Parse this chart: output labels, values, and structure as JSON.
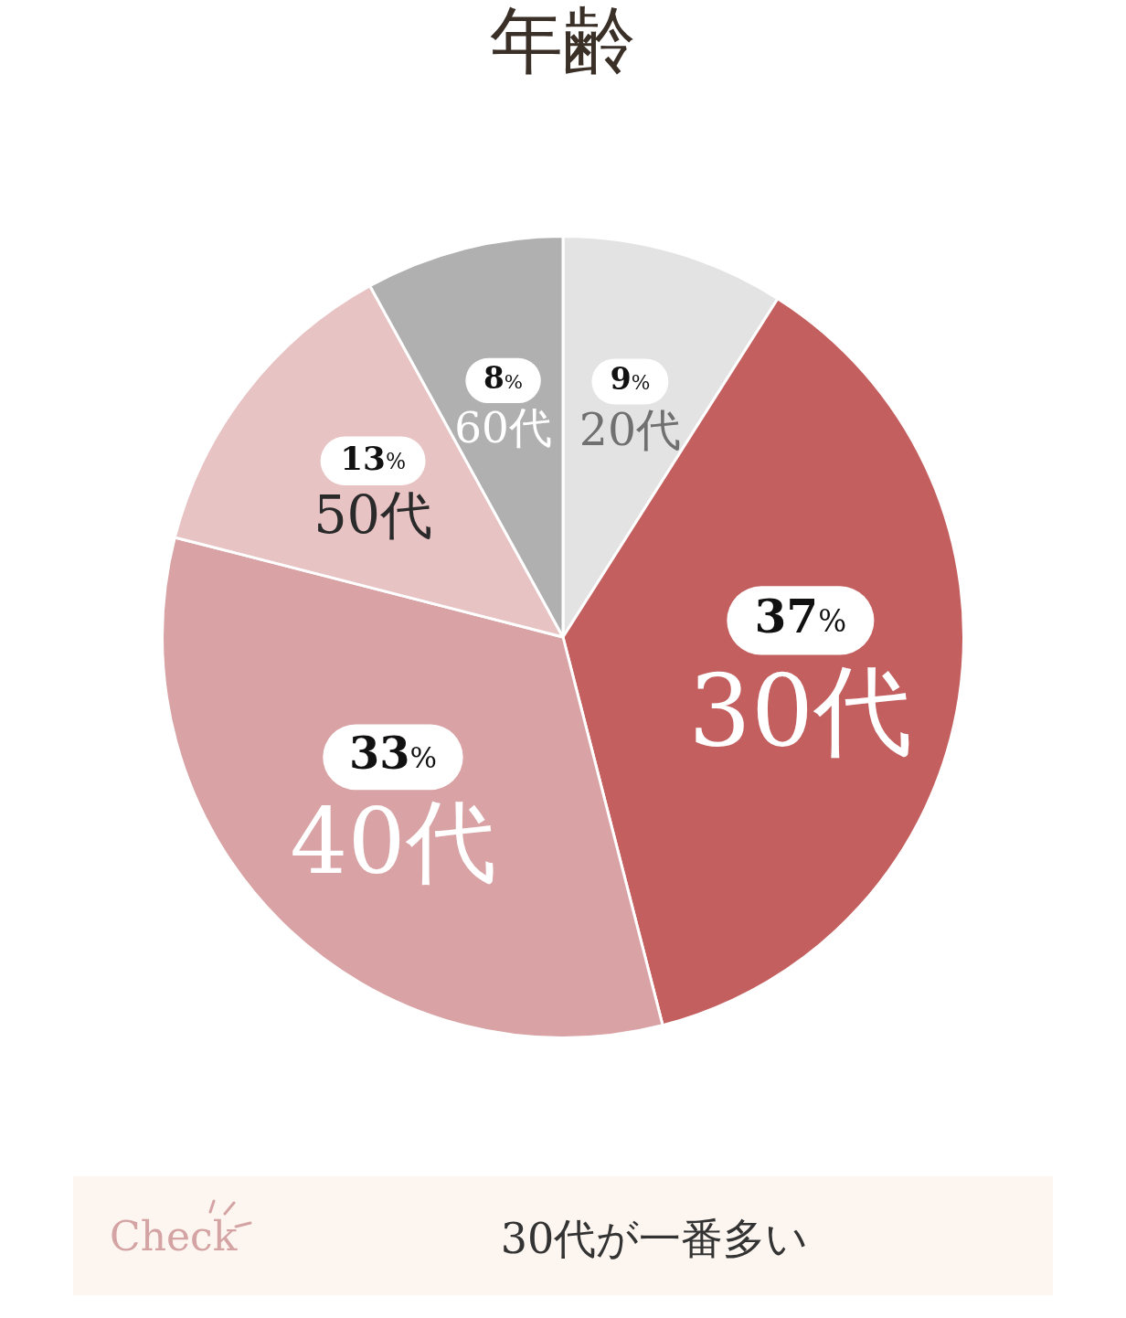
{
  "chart_data": {
    "type": "pie",
    "title": "年齢",
    "categories": [
      "20代",
      "30代",
      "40代",
      "50代",
      "60代"
    ],
    "values": [
      9,
      37,
      33,
      13,
      8
    ],
    "colors": [
      "#e3e3e3",
      "#c45f5f",
      "#d9a2a5",
      "#e8c3c4",
      "#b0b0b0"
    ],
    "value_labels": [
      "9%",
      "37%",
      "33%",
      "13%",
      "8%"
    ],
    "legend": false,
    "annotations": [
      "Check",
      "30代が一番多い"
    ]
  }
}
